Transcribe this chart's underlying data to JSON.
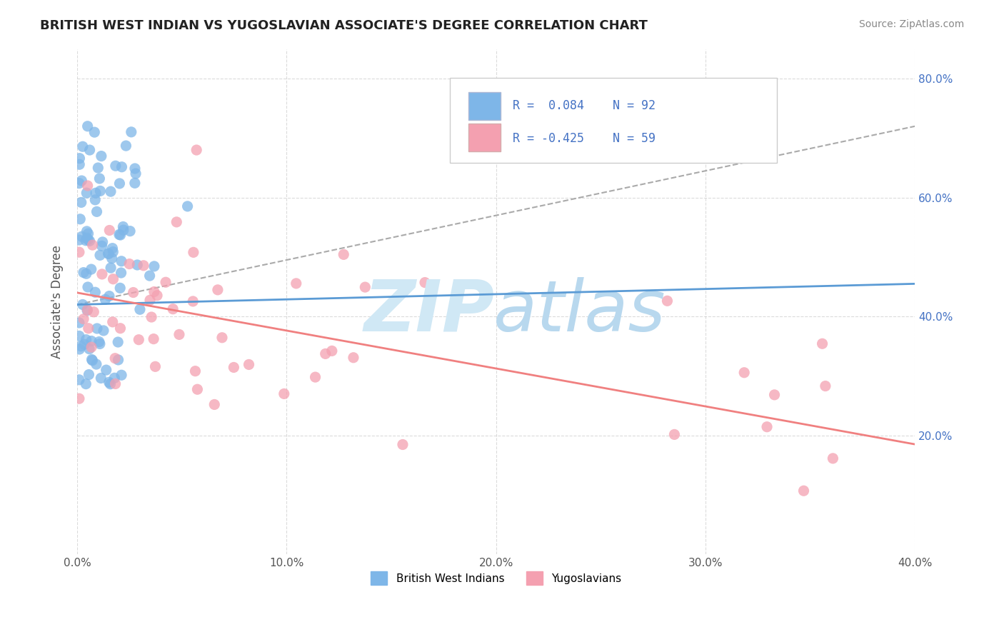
{
  "title": "BRITISH WEST INDIAN VS YUGOSLAVIAN ASSOCIATE'S DEGREE CORRELATION CHART",
  "source": "Source: ZipAtlas.com",
  "ylabel": "Associate's Degree",
  "legend_label1": "British West Indians",
  "legend_label2": "Yugoslavians",
  "color_blue": "#7EB6E8",
  "color_pink": "#F4A0B0",
  "line_blue": "#5B9BD5",
  "line_pink": "#F08080",
  "watermark_color": "#D0E8F5",
  "xlim": [
    0.0,
    0.4
  ],
  "ylim": [
    0.0,
    0.85
  ],
  "blue_line_x": [
    0.0,
    0.4
  ],
  "blue_line_y": [
    0.42,
    0.455
  ],
  "pink_line_x": [
    0.0,
    0.4
  ],
  "pink_line_y": [
    0.44,
    0.185
  ],
  "dashed_line_x": [
    0.0,
    0.4
  ],
  "dashed_line_y": [
    0.42,
    0.72
  ],
  "right_yticks": [
    0.2,
    0.4,
    0.6,
    0.8
  ],
  "right_ytick_labels": [
    "20.0%",
    "40.0%",
    "60.0%",
    "80.0%"
  ],
  "legend_color_blue_text": "#4472C4",
  "n_blue": 92,
  "n_pink": 59
}
